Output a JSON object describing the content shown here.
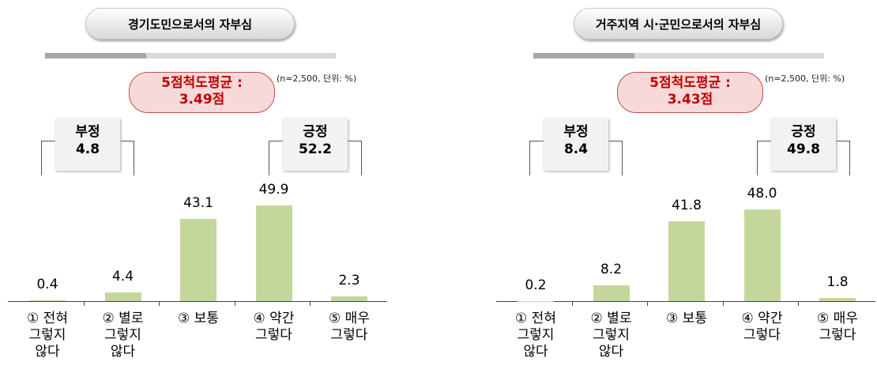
{
  "chart_data": [
    {
      "type": "bar",
      "title": "경기도민으로서의 자부심",
      "average_label": "5점척도평균 :",
      "average": "3.49점",
      "note": "(n=2,500,  단위: %)",
      "negative": {
        "label": "부정",
        "value": 4.8
      },
      "positive": {
        "label": "긍정",
        "value": 52.2
      },
      "categories": [
        "① 전혀\n그렇지\n않다",
        "② 별로\n그렇지\n않다",
        "③ 보통",
        "④ 약간\n그렇다",
        "⑤ 매우\n그렇다"
      ],
      "values": [
        0.4,
        4.4,
        43.1,
        49.9,
        2.3
      ],
      "value_labels": [
        "0.4",
        "4.4",
        "43.1",
        "49.9",
        "2.3"
      ],
      "color": "#c4d79b"
    },
    {
      "type": "bar",
      "title": "거주지역 시·군민으로서의 자부심",
      "average_label": "5점척도평균 :",
      "average": "3.43점",
      "note": "(n=2,500,  단위: %)",
      "negative": {
        "label": "부정",
        "value": 8.4
      },
      "positive": {
        "label": "긍정",
        "value": 49.8
      },
      "categories": [
        "① 전혀\n그렇지\n않다",
        "② 별로\n그렇지\n않다",
        "③ 보통",
        "④ 약간\n그렇다",
        "⑤ 매우\n그렇다"
      ],
      "values": [
        0.2,
        8.2,
        41.8,
        48.0,
        1.8
      ],
      "value_labels": [
        "0.2",
        "8.2",
        "41.8",
        "48.0",
        "1.8"
      ],
      "color": "#c4d79b"
    }
  ]
}
